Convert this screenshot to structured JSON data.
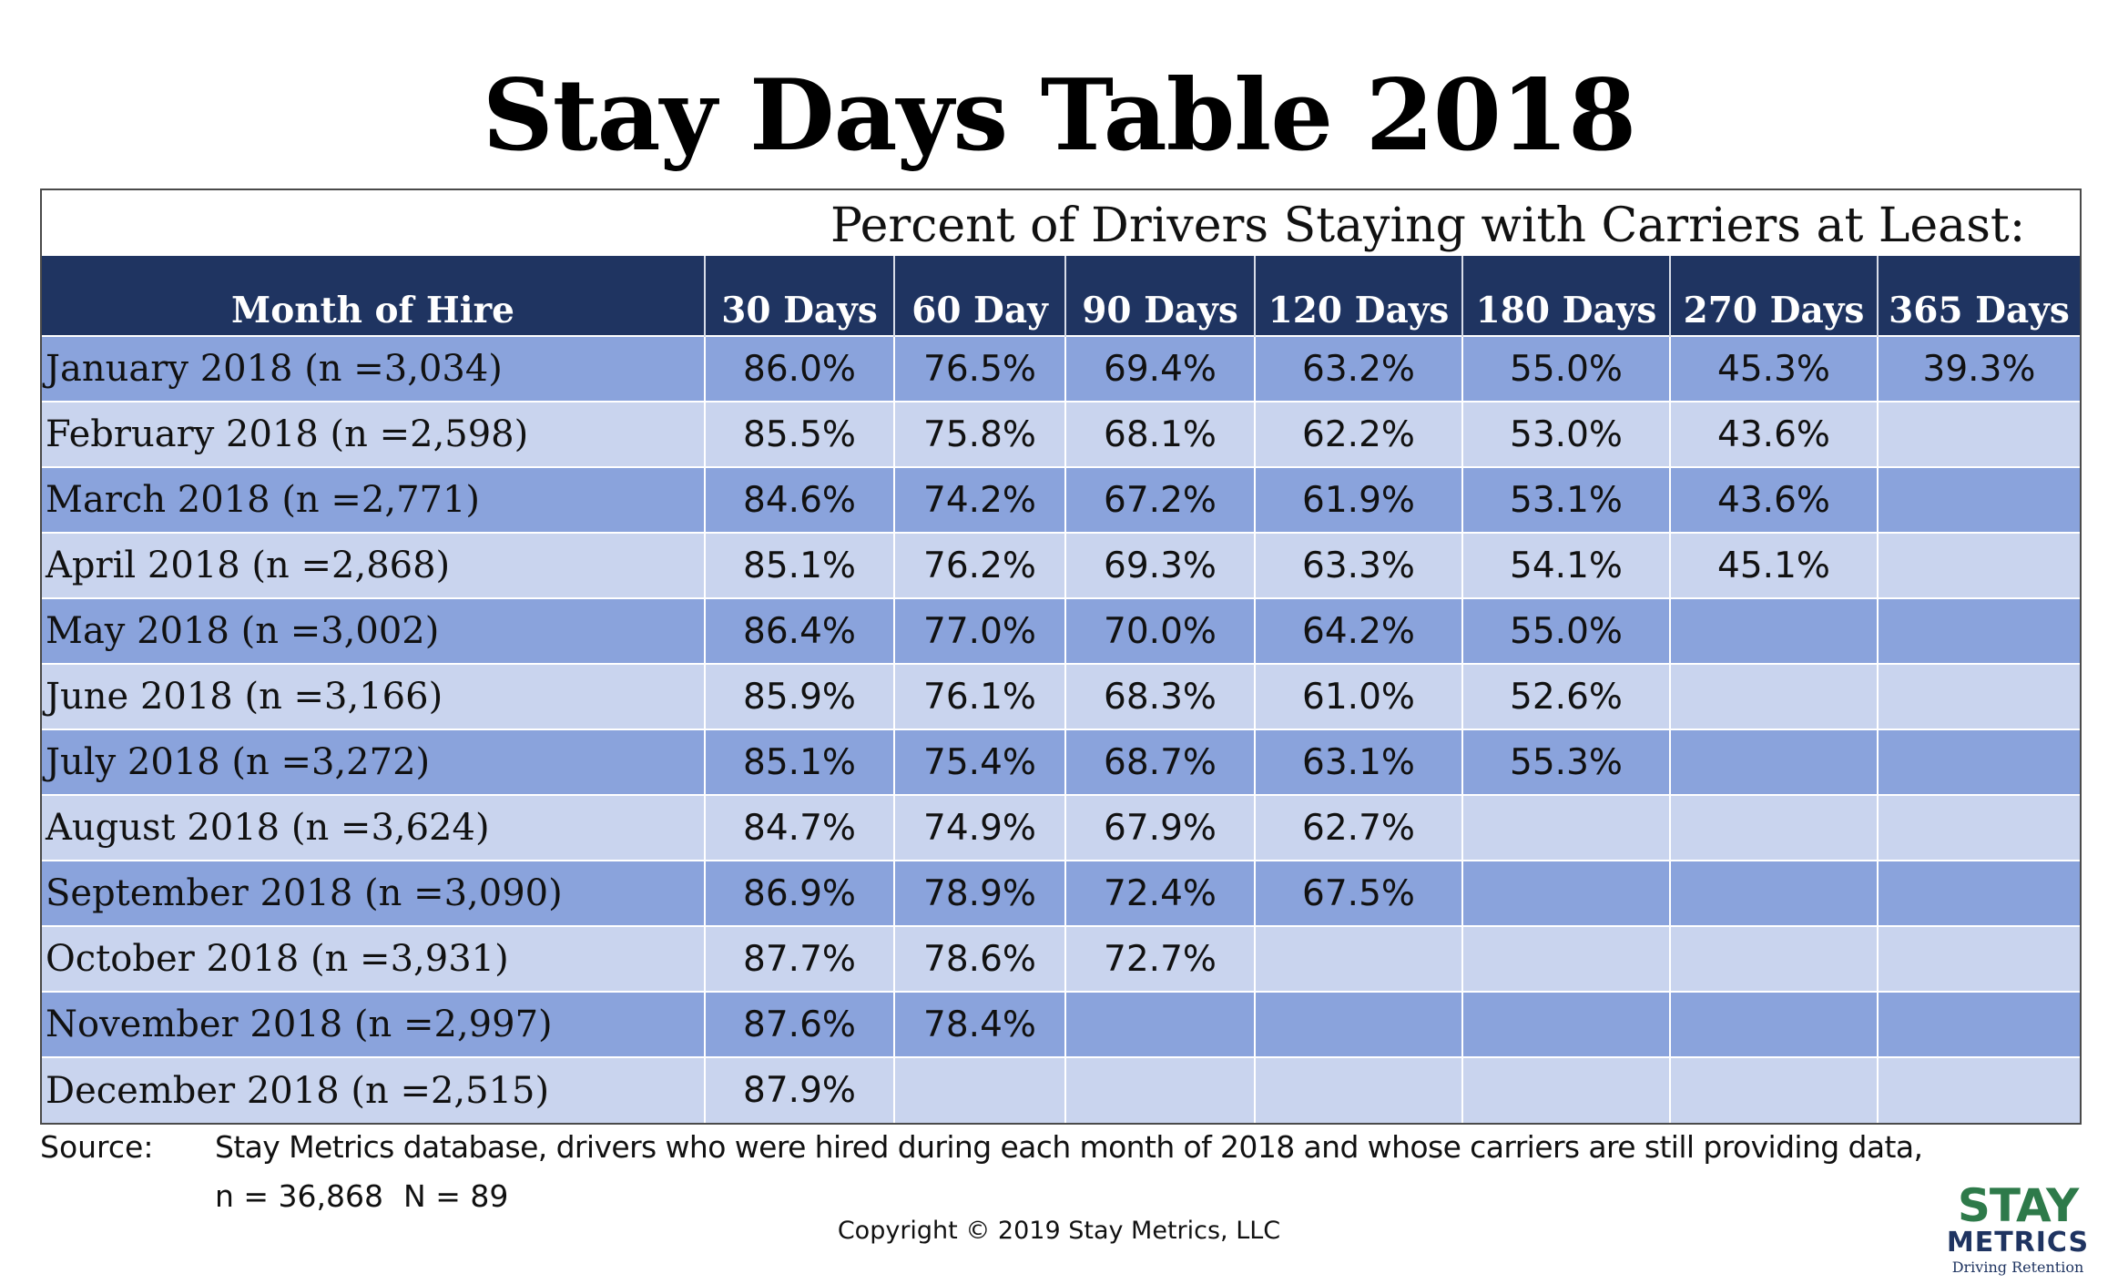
{
  "title": "Stay Days Table 2018",
  "subtitle": "Percent of Drivers Staying with Carriers at Least:",
  "columns": [
    "Month of Hire",
    "30 Days",
    "60 Day",
    "90 Days",
    "120 Days",
    "180 Days",
    "270 Days",
    "365 Days"
  ],
  "rows": [
    [
      "January 2018 (n =3,034)",
      "86.0%",
      "76.5%",
      "69.4%",
      "63.2%",
      "55.0%",
      "45.3%",
      "39.3%"
    ],
    [
      "February 2018 (n =2,598)",
      "85.5%",
      "75.8%",
      "68.1%",
      "62.2%",
      "53.0%",
      "43.6%",
      ""
    ],
    [
      "March 2018 (n =2,771)",
      "84.6%",
      "74.2%",
      "67.2%",
      "61.9%",
      "53.1%",
      "43.6%",
      ""
    ],
    [
      "April 2018 (n =2,868)",
      "85.1%",
      "76.2%",
      "69.3%",
      "63.3%",
      "54.1%",
      "45.1%",
      ""
    ],
    [
      "May 2018 (n =3,002)",
      "86.4%",
      "77.0%",
      "70.0%",
      "64.2%",
      "55.0%",
      "",
      ""
    ],
    [
      "June 2018 (n =3,166)",
      "85.9%",
      "76.1%",
      "68.3%",
      "61.0%",
      "52.6%",
      "",
      ""
    ],
    [
      "July 2018 (n =3,272)",
      "85.1%",
      "75.4%",
      "68.7%",
      "63.1%",
      "55.3%",
      "",
      ""
    ],
    [
      "August 2018 (n =3,624)",
      "84.7%",
      "74.9%",
      "67.9%",
      "62.7%",
      "",
      "",
      ""
    ],
    [
      "September 2018 (n =3,090)",
      "86.9%",
      "78.9%",
      "72.4%",
      "67.5%",
      "",
      "",
      ""
    ],
    [
      "October 2018 (n =3,931)",
      "87.7%",
      "78.6%",
      "72.7%",
      "",
      "",
      "",
      ""
    ],
    [
      "November 2018 (n =2,997)",
      "87.6%",
      "78.4%",
      "",
      "",
      "",
      "",
      ""
    ],
    [
      "December 2018 (n =2,515)",
      "87.9%",
      "",
      "",
      "",
      "",
      "",
      ""
    ]
  ],
  "source": {
    "label": "Source:",
    "text": "Stay Metrics database, drivers who were hired during each month of 2018 and whose carriers are still providing data,",
    "n": "n = 36,868",
    "N": "N = 89"
  },
  "copyright": "Copyright © 2019 Stay Metrics, LLC",
  "logo": {
    "line1": "STAY",
    "line2": "METRICS",
    "tagline": "Driving Retention"
  },
  "colors": {
    "header_bg": "#1f3461",
    "row_dark": "#8aa3dc",
    "row_light": "#c9d4ee",
    "logo_green": "#2e7a4a"
  }
}
